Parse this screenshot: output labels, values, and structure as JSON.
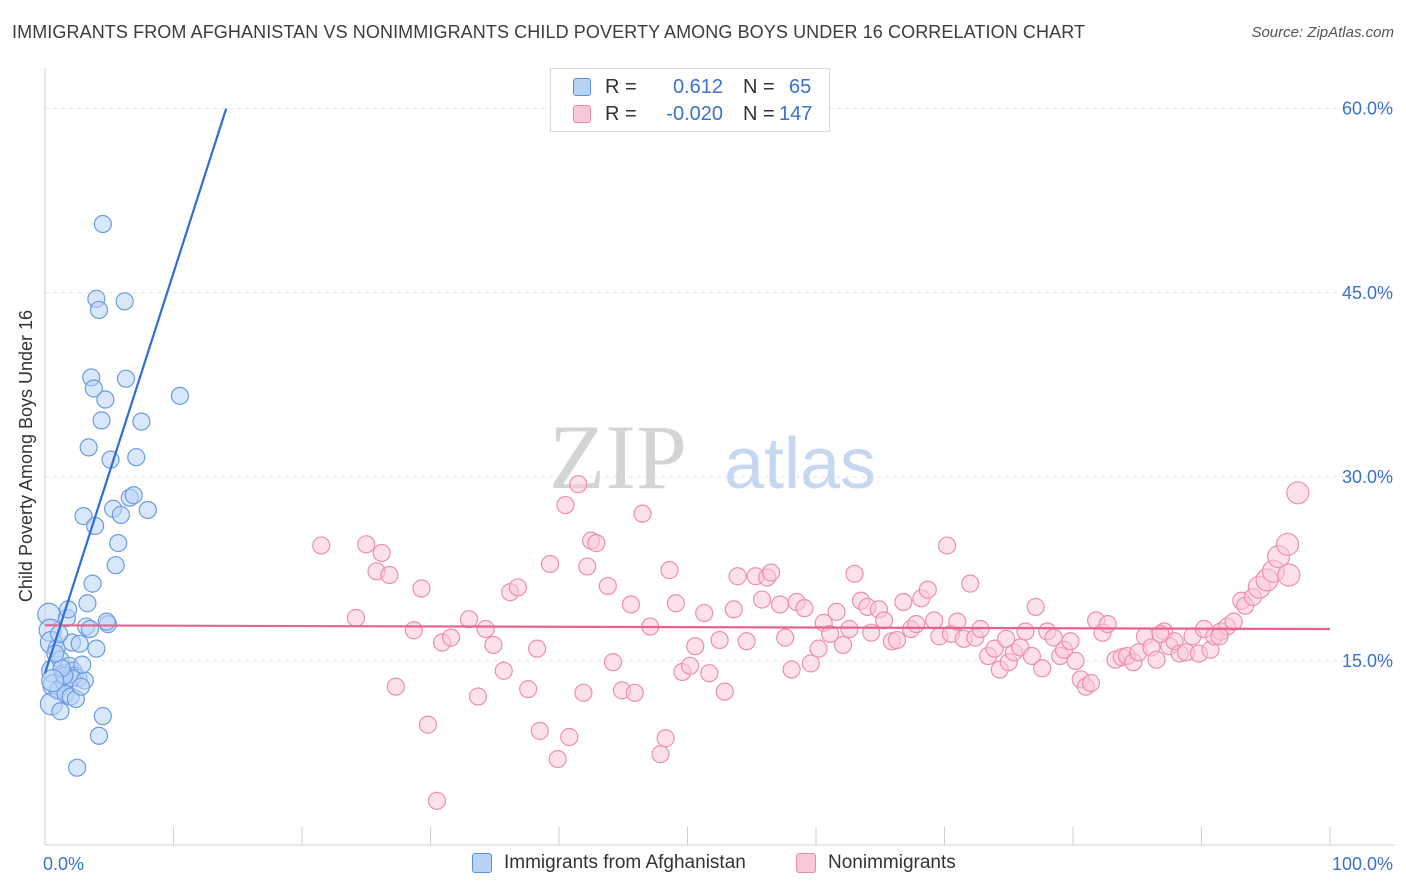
{
  "title": "IMMIGRANTS FROM AFGHANISTAN VS NONIMMIGRANTS CHILD POVERTY AMONG BOYS UNDER 16 CORRELATION CHART",
  "source": "Source: ZipAtlas.com",
  "watermark": {
    "zip": "ZIP",
    "atlas": "atlas"
  },
  "legend_top": [
    {
      "r_label": "R =",
      "r_value": "0.612",
      "n_label": "N =",
      "n_value": "65"
    },
    {
      "r_label": "R =",
      "r_value": "-0.020",
      "n_label": "N =",
      "n_value": "147"
    }
  ],
  "bottom_legend": [
    "Immigrants from Afghanistan",
    "Nonimmigrants"
  ],
  "colors": {
    "blue_fill": "#b9d3f7",
    "blue_stroke": "#6b9be3",
    "blue_line": "#2f6fd1",
    "pink_fill": "#f9c9d8",
    "pink_stroke": "#ec8fae",
    "pink_line": "#e8628f",
    "axis_label": "#3a72d0",
    "grid": "#e4e4e4"
  },
  "chart_data": {
    "type": "scatter",
    "title": "IMMIGRANTS FROM AFGHANISTAN VS NONIMMIGRANTS CHILD POVERTY AMONG BOYS UNDER 16 CORRELATION CHART",
    "xlabel": "",
    "ylabel": "Child Poverty Among Boys Under 16",
    "xlim": [
      0,
      100
    ],
    "ylim": [
      0,
      62.5
    ],
    "x_tick_labels": [
      "0.0%",
      "100.0%"
    ],
    "y_ticks": [
      15,
      30,
      45,
      60
    ],
    "y_tick_labels": [
      "15.0%",
      "30.0%",
      "45.0%",
      "60.0%"
    ],
    "grid": true,
    "legend_position": "top-center",
    "series": [
      {
        "name": "Immigrants from Afghanistan",
        "R": 0.612,
        "N": 65,
        "trend": {
          "x": [
            0,
            14.1
          ],
          "y": [
            14.0,
            60.0
          ]
        },
        "points": [
          [
            0.3,
            18.8
          ],
          [
            0.4,
            17.5
          ],
          [
            0.5,
            16.5
          ],
          [
            0.6,
            14.2
          ],
          [
            0.7,
            13.0
          ],
          [
            0.5,
            11.5
          ],
          [
            0.9,
            16.0
          ],
          [
            1.0,
            12.6
          ],
          [
            1.2,
            15.1
          ],
          [
            1.2,
            10.9
          ],
          [
            1.4,
            14.0
          ],
          [
            1.5,
            13.2
          ],
          [
            1.6,
            12.3
          ],
          [
            1.7,
            18.5
          ],
          [
            1.8,
            19.2
          ],
          [
            1.9,
            14.6
          ],
          [
            2.0,
            12.1
          ],
          [
            2.1,
            16.5
          ],
          [
            2.2,
            14.2
          ],
          [
            2.3,
            13.8
          ],
          [
            2.4,
            11.9
          ],
          [
            2.5,
            6.3
          ],
          [
            2.6,
            13.6
          ],
          [
            2.7,
            16.4
          ],
          [
            2.1,
            13.6
          ],
          [
            1.5,
            13.8
          ],
          [
            3.0,
            26.8
          ],
          [
            3.2,
            17.8
          ],
          [
            3.4,
            32.4
          ],
          [
            3.6,
            38.1
          ],
          [
            3.8,
            37.2
          ],
          [
            4.0,
            44.5
          ],
          [
            4.2,
            43.6
          ],
          [
            3.9,
            26.0
          ],
          [
            3.7,
            21.3
          ],
          [
            3.3,
            19.7
          ],
          [
            4.4,
            34.6
          ],
          [
            4.5,
            50.6
          ],
          [
            4.7,
            36.3
          ],
          [
            4.9,
            18.0
          ],
          [
            5.1,
            31.4
          ],
          [
            5.3,
            27.4
          ],
          [
            5.5,
            22.8
          ],
          [
            5.7,
            24.6
          ],
          [
            4.5,
            10.5
          ],
          [
            4.8,
            18.2
          ],
          [
            5.9,
            26.9
          ],
          [
            6.2,
            44.3
          ],
          [
            6.3,
            38.0
          ],
          [
            6.6,
            28.3
          ],
          [
            6.9,
            28.5
          ],
          [
            7.1,
            31.6
          ],
          [
            7.5,
            34.5
          ],
          [
            4.2,
            8.9
          ],
          [
            8.0,
            27.3
          ],
          [
            10.5,
            36.6
          ],
          [
            3.1,
            13.4
          ],
          [
            2.8,
            12.9
          ],
          [
            1.3,
            14.4
          ],
          [
            0.8,
            15.6
          ],
          [
            3.5,
            17.6
          ],
          [
            2.9,
            14.7
          ],
          [
            1.1,
            17.2
          ],
          [
            4.0,
            16.0
          ],
          [
            0.6,
            13.4
          ]
        ]
      },
      {
        "name": "Nonimmigrants",
        "R": -0.02,
        "N": 147,
        "trend": {
          "x": [
            0,
            100
          ],
          "y": [
            17.9,
            17.6
          ]
        },
        "points": [
          [
            21.5,
            24.4
          ],
          [
            24.2,
            18.5
          ],
          [
            25.0,
            24.5
          ],
          [
            25.8,
            22.3
          ],
          [
            26.2,
            23.8
          ],
          [
            26.8,
            22.0
          ],
          [
            27.3,
            12.9
          ],
          [
            29.3,
            20.9
          ],
          [
            28.7,
            17.5
          ],
          [
            29.8,
            9.8
          ],
          [
            30.5,
            3.6
          ],
          [
            30.9,
            16.5
          ],
          [
            31.6,
            16.9
          ],
          [
            33.0,
            18.4
          ],
          [
            33.7,
            12.1
          ],
          [
            34.3,
            17.6
          ],
          [
            34.9,
            16.3
          ],
          [
            35.7,
            14.2
          ],
          [
            36.2,
            20.6
          ],
          [
            36.8,
            21.0
          ],
          [
            37.6,
            12.7
          ],
          [
            38.3,
            16.0
          ],
          [
            38.5,
            9.3
          ],
          [
            39.3,
            22.9
          ],
          [
            39.9,
            7.0
          ],
          [
            40.5,
            27.7
          ],
          [
            40.8,
            8.8
          ],
          [
            41.5,
            29.4
          ],
          [
            41.9,
            12.4
          ],
          [
            42.2,
            22.7
          ],
          [
            42.5,
            24.8
          ],
          [
            42.9,
            24.6
          ],
          [
            43.8,
            21.1
          ],
          [
            44.2,
            14.9
          ],
          [
            44.9,
            12.6
          ],
          [
            45.6,
            19.6
          ],
          [
            45.9,
            12.4
          ],
          [
            46.5,
            27.0
          ],
          [
            47.1,
            17.8
          ],
          [
            47.9,
            7.4
          ],
          [
            48.3,
            8.7
          ],
          [
            48.6,
            22.4
          ],
          [
            49.1,
            19.7
          ],
          [
            49.6,
            14.1
          ],
          [
            50.2,
            14.6
          ],
          [
            50.6,
            16.2
          ],
          [
            51.3,
            18.9
          ],
          [
            51.7,
            14.0
          ],
          [
            52.5,
            16.7
          ],
          [
            52.9,
            12.5
          ],
          [
            53.6,
            19.2
          ],
          [
            53.9,
            21.9
          ],
          [
            54.6,
            16.6
          ],
          [
            55.3,
            21.9
          ],
          [
            55.8,
            20.0
          ],
          [
            56.2,
            21.8
          ],
          [
            56.5,
            22.2
          ],
          [
            57.2,
            19.6
          ],
          [
            57.6,
            16.9
          ],
          [
            58.1,
            14.3
          ],
          [
            58.5,
            19.8
          ],
          [
            59.1,
            19.3
          ],
          [
            59.6,
            14.8
          ],
          [
            60.2,
            16.0
          ],
          [
            60.6,
            18.1
          ],
          [
            61.1,
            17.2
          ],
          [
            61.6,
            19.0
          ],
          [
            62.1,
            16.3
          ],
          [
            62.6,
            17.6
          ],
          [
            63.0,
            22.1
          ],
          [
            63.5,
            19.9
          ],
          [
            64.0,
            19.4
          ],
          [
            64.3,
            17.3
          ],
          [
            64.9,
            19.2
          ],
          [
            65.3,
            18.3
          ],
          [
            65.9,
            16.6
          ],
          [
            66.3,
            16.7
          ],
          [
            66.8,
            19.8
          ],
          [
            67.4,
            17.6
          ],
          [
            67.8,
            18.0
          ],
          [
            68.2,
            20.1
          ],
          [
            68.7,
            20.8
          ],
          [
            69.2,
            18.3
          ],
          [
            69.6,
            17.0
          ],
          [
            70.2,
            24.4
          ],
          [
            70.5,
            17.2
          ],
          [
            71.0,
            18.2
          ],
          [
            71.5,
            16.8
          ],
          [
            72.0,
            21.3
          ],
          [
            72.4,
            16.9
          ],
          [
            72.8,
            17.6
          ],
          [
            73.4,
            15.4
          ],
          [
            73.9,
            16.0
          ],
          [
            74.3,
            14.3
          ],
          [
            75.0,
            14.9
          ],
          [
            75.4,
            15.7
          ],
          [
            75.9,
            16.1
          ],
          [
            76.3,
            17.4
          ],
          [
            76.8,
            15.4
          ],
          [
            77.1,
            19.4
          ],
          [
            77.6,
            14.4
          ],
          [
            78.0,
            17.4
          ],
          [
            78.5,
            16.9
          ],
          [
            79.0,
            15.4
          ],
          [
            79.3,
            15.9
          ],
          [
            79.8,
            16.6
          ],
          [
            80.2,
            15.0
          ],
          [
            80.6,
            13.5
          ],
          [
            81.0,
            12.9
          ],
          [
            81.4,
            13.2
          ],
          [
            81.8,
            18.3
          ],
          [
            82.3,
            17.3
          ],
          [
            82.7,
            18.0
          ],
          [
            83.3,
            15.1
          ],
          [
            83.8,
            15.3
          ],
          [
            84.2,
            15.4
          ],
          [
            84.7,
            14.9
          ],
          [
            85.1,
            15.7
          ],
          [
            85.6,
            17.0
          ],
          [
            86.1,
            16.1
          ],
          [
            86.5,
            15.1
          ],
          [
            87.1,
            17.4
          ],
          [
            87.5,
            16.2
          ],
          [
            87.9,
            16.6
          ],
          [
            88.3,
            15.6
          ],
          [
            88.8,
            15.7
          ],
          [
            89.3,
            17.0
          ],
          [
            89.8,
            15.6
          ],
          [
            90.2,
            17.6
          ],
          [
            90.7,
            15.9
          ],
          [
            91.0,
            17.0
          ],
          [
            91.5,
            17.4
          ],
          [
            92.0,
            17.8
          ],
          [
            92.5,
            18.2
          ],
          [
            93.1,
            19.9
          ],
          [
            93.4,
            19.5
          ],
          [
            94.0,
            20.2
          ],
          [
            94.5,
            21.0
          ],
          [
            95.1,
            21.6
          ],
          [
            95.6,
            22.3
          ],
          [
            96.0,
            23.5
          ],
          [
            96.7,
            24.5
          ],
          [
            97.5,
            28.7
          ],
          [
            96.8,
            22.0
          ],
          [
            86.8,
            17.2
          ],
          [
            91.4,
            17.0
          ],
          [
            74.8,
            16.8
          ]
        ]
      }
    ]
  }
}
